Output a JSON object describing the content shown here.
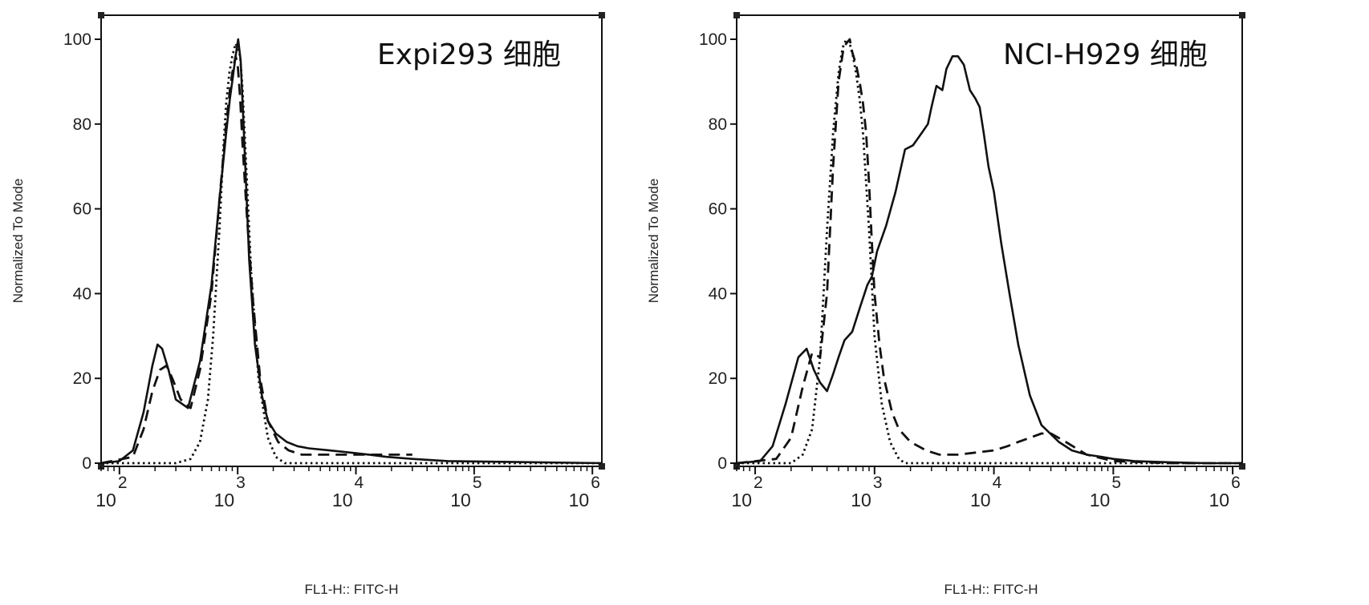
{
  "chart_data": [
    {
      "type": "line",
      "title": "Expi293 细胞",
      "xlabel": "FL1-H:: FITC-H",
      "ylabel": "Normalized To Mode",
      "x_scale": "log",
      "xlim": [
        70,
        1200000
      ],
      "ylim": [
        0,
        105
      ],
      "yticks": [
        0,
        20,
        40,
        60,
        80,
        100
      ],
      "xticks": [
        {
          "value": 100,
          "label": "10",
          "exp": "2"
        },
        {
          "value": 1000,
          "label": "10",
          "exp": "3"
        },
        {
          "value": 10000,
          "label": "10",
          "exp": "4"
        },
        {
          "value": 100000,
          "label": "10",
          "exp": "5"
        },
        {
          "value": 1000000,
          "label": "10",
          "exp": "6"
        }
      ],
      "series": [
        {
          "style": "solid",
          "x": [
            70,
            100,
            130,
            160,
            190,
            210,
            230,
            260,
            300,
            380,
            480,
            600,
            700,
            800,
            860,
            900,
            960,
            1010,
            1060,
            1100,
            1160,
            1250,
            1400,
            1600,
            1800,
            2100,
            2600,
            3200,
            4000,
            6000,
            9000,
            13000,
            18000,
            30000,
            60000,
            200000,
            1200000
          ],
          "y": [
            0,
            0.5,
            3,
            12,
            23,
            28,
            27,
            22,
            15,
            13,
            24,
            42,
            62,
            78,
            86,
            90,
            96,
            100,
            95,
            85,
            70,
            48,
            28,
            16,
            10,
            7,
            5,
            4,
            3.5,
            3,
            2.5,
            2,
            1.5,
            1,
            0.5,
            0.3,
            0
          ]
        },
        {
          "style": "dashed",
          "x": [
            70,
            130,
            160,
            190,
            220,
            250,
            280,
            330,
            400,
            480,
            600,
            700,
            800,
            860,
            900,
            960,
            1000,
            1050,
            1100,
            1200,
            1350,
            1550,
            1800,
            2200,
            2700,
            3500,
            5000,
            8000,
            15000,
            25000,
            30000
          ],
          "y": [
            0,
            1.5,
            8,
            17,
            22,
            23,
            20,
            15,
            13,
            22,
            40,
            62,
            80,
            88,
            92,
            96,
            94,
            86,
            75,
            58,
            38,
            20,
            10,
            5,
            3,
            2,
            2,
            2,
            2,
            2,
            2
          ]
        },
        {
          "style": "dotted",
          "x": [
            70,
            300,
            400,
            480,
            560,
            620,
            700,
            760,
            800,
            850,
            900,
            960,
            1000,
            1050,
            1100,
            1180,
            1300,
            1500,
            1800,
            2100,
            2500,
            1200000
          ],
          "y": [
            0,
            0,
            1,
            5,
            15,
            30,
            55,
            75,
            85,
            92,
            96,
            99,
            98,
            96,
            88,
            70,
            45,
            20,
            6,
            1.5,
            0,
            0
          ]
        }
      ]
    },
    {
      "type": "line",
      "title": "NCI-H929 细胞",
      "xlabel": "FL1-H:: FITC-H",
      "ylabel": "Normalized To Mode",
      "x_scale": "log",
      "xlim": [
        70,
        1200000
      ],
      "ylim": [
        0,
        105
      ],
      "yticks": [
        0,
        20,
        40,
        60,
        80,
        100
      ],
      "xticks": [
        {
          "value": 100,
          "label": "10",
          "exp": "2"
        },
        {
          "value": 1000,
          "label": "10",
          "exp": "3"
        },
        {
          "value": 10000,
          "label": "10",
          "exp": "4"
        },
        {
          "value": 100000,
          "label": "10",
          "exp": "5"
        },
        {
          "value": 1000000,
          "label": "10",
          "exp": "6"
        }
      ],
      "series": [
        {
          "style": "solid",
          "x": [
            70,
            110,
            140,
            180,
            230,
            270,
            310,
            350,
            400,
            450,
            500,
            560,
            650,
            760,
            870,
            950,
            1050,
            1250,
            1500,
            1800,
            2100,
            2500,
            2800,
            3000,
            3300,
            3700,
            4000,
            4500,
            5000,
            5600,
            6300,
            7000,
            7600,
            8200,
            9000,
            10000,
            11500,
            13500,
            16000,
            20000,
            25000,
            35000,
            45000,
            60000,
            80000,
            100000,
            150000,
            300000,
            600000,
            1200000
          ],
          "y": [
            0,
            0.5,
            4,
            14,
            25,
            27,
            22,
            19,
            17,
            21,
            25,
            29,
            31,
            37,
            42,
            44,
            50,
            56,
            64,
            74,
            75,
            78,
            80,
            84,
            89,
            88,
            93,
            96,
            96,
            94,
            88,
            86,
            84,
            78,
            70,
            64,
            52,
            40,
            28,
            16,
            9,
            5,
            3,
            2,
            1.5,
            1,
            0.5,
            0.2,
            0,
            0
          ]
        },
        {
          "style": "dashed",
          "x": [
            70,
            150,
            200,
            250,
            300,
            350,
            400,
            450,
            500,
            550,
            580,
            620,
            650,
            700,
            750,
            800,
            850,
            900,
            950,
            1000,
            1100,
            1200,
            1400,
            1600,
            2000,
            2700,
            3500,
            5000,
            7000,
            10000,
            13000,
            16000,
            20000,
            25000,
            30000,
            40000,
            60000,
            100000,
            300000,
            1200000
          ],
          "y": [
            0,
            1,
            6,
            18,
            26,
            25,
            40,
            70,
            90,
            98,
            99,
            100,
            97,
            94,
            90,
            85,
            78,
            66,
            52,
            40,
            28,
            20,
            12,
            8,
            5,
            3,
            2,
            2,
            2.5,
            3,
            4,
            5,
            6,
            7,
            7,
            5,
            2,
            0.5,
            0,
            0
          ]
        },
        {
          "style": "dotted",
          "x": [
            70,
            200,
            250,
            300,
            350,
            400,
            450,
            500,
            540,
            580,
            620,
            660,
            700,
            750,
            800,
            900,
            1000,
            1150,
            1350,
            1600,
            1800,
            1200000
          ],
          "y": [
            0,
            0,
            2,
            8,
            25,
            55,
            78,
            92,
            98,
            100,
            99,
            96,
            92,
            86,
            78,
            55,
            30,
            14,
            5,
            1,
            0,
            0
          ]
        }
      ]
    }
  ]
}
